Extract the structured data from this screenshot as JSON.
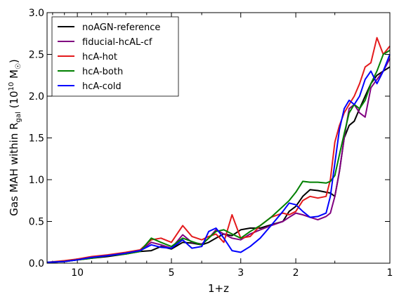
{
  "chart_data": {
    "type": "line",
    "xlabel": "1+z",
    "ylabel": {
      "main": "Gas MAH within R",
      "sub": "gal",
      "unit_open": " (10",
      "unit_exp": "10",
      "unit_mid": " M",
      "unit_sun": "☉",
      "unit_close": ")"
    },
    "xscale": "log",
    "xlim": [
      12.5,
      1.0
    ],
    "ylim": [
      0.0,
      3.0
    ],
    "xticks": [
      {
        "value": 10,
        "label": "10"
      },
      {
        "value": 5,
        "label": "5"
      },
      {
        "value": 3,
        "label": "3"
      },
      {
        "value": 2,
        "label": "2"
      },
      {
        "value": 1,
        "label": "1"
      }
    ],
    "yticks": [
      "0.0",
      "0.5",
      "1.0",
      "1.5",
      "2.0",
      "2.5",
      "3.0"
    ],
    "legend_position": "top-left",
    "series": [
      {
        "name": "noAGN-reference",
        "color": "#000000",
        "points": [
          [
            12.5,
            0.01
          ],
          [
            11,
            0.02
          ],
          [
            10,
            0.04
          ],
          [
            9,
            0.06
          ],
          [
            8,
            0.08
          ],
          [
            7,
            0.11
          ],
          [
            6.3,
            0.14
          ],
          [
            5.8,
            0.15
          ],
          [
            5.4,
            0.2
          ],
          [
            5,
            0.17
          ],
          [
            4.6,
            0.25
          ],
          [
            4.3,
            0.24
          ],
          [
            4,
            0.22
          ],
          [
            3.8,
            0.25
          ],
          [
            3.6,
            0.3
          ],
          [
            3.4,
            0.35
          ],
          [
            3.2,
            0.33
          ],
          [
            3.0,
            0.4
          ],
          [
            2.8,
            0.42
          ],
          [
            2.6,
            0.42
          ],
          [
            2.4,
            0.46
          ],
          [
            2.2,
            0.5
          ],
          [
            2.1,
            0.62
          ],
          [
            2.0,
            0.68
          ],
          [
            1.9,
            0.8
          ],
          [
            1.8,
            0.88
          ],
          [
            1.7,
            0.87
          ],
          [
            1.6,
            0.85
          ],
          [
            1.55,
            0.84
          ],
          [
            1.5,
            0.8
          ],
          [
            1.45,
            1.1
          ],
          [
            1.4,
            1.5
          ],
          [
            1.35,
            1.65
          ],
          [
            1.3,
            1.7
          ],
          [
            1.25,
            1.85
          ],
          [
            1.2,
            2.0
          ],
          [
            1.15,
            2.15
          ],
          [
            1.1,
            2.25
          ],
          [
            1.05,
            2.3
          ],
          [
            1.0,
            2.35
          ]
        ]
      },
      {
        "name": "fiducial-hcAL-cf",
        "color": "#800080",
        "points": [
          [
            12.5,
            0.01
          ],
          [
            11,
            0.02
          ],
          [
            10,
            0.05
          ],
          [
            9,
            0.07
          ],
          [
            8,
            0.09
          ],
          [
            7,
            0.12
          ],
          [
            6.3,
            0.15
          ],
          [
            5.8,
            0.25
          ],
          [
            5.4,
            0.22
          ],
          [
            5,
            0.18
          ],
          [
            4.6,
            0.34
          ],
          [
            4.3,
            0.25
          ],
          [
            4,
            0.23
          ],
          [
            3.8,
            0.3
          ],
          [
            3.6,
            0.4
          ],
          [
            3.4,
            0.35
          ],
          [
            3.2,
            0.3
          ],
          [
            3.0,
            0.28
          ],
          [
            2.8,
            0.35
          ],
          [
            2.6,
            0.4
          ],
          [
            2.4,
            0.45
          ],
          [
            2.2,
            0.5
          ],
          [
            2.1,
            0.55
          ],
          [
            2.0,
            0.6
          ],
          [
            1.9,
            0.58
          ],
          [
            1.8,
            0.55
          ],
          [
            1.7,
            0.52
          ],
          [
            1.6,
            0.56
          ],
          [
            1.55,
            0.6
          ],
          [
            1.5,
            0.8
          ],
          [
            1.45,
            1.1
          ],
          [
            1.4,
            1.5
          ],
          [
            1.35,
            1.85
          ],
          [
            1.3,
            1.9
          ],
          [
            1.25,
            1.8
          ],
          [
            1.2,
            1.75
          ],
          [
            1.15,
            2.1
          ],
          [
            1.1,
            2.2
          ],
          [
            1.05,
            2.3
          ],
          [
            1.0,
            2.45
          ]
        ]
      },
      {
        "name": "hcA-hot",
        "color": "#e41a1c",
        "points": [
          [
            12.5,
            0.01
          ],
          [
            11,
            0.03
          ],
          [
            10,
            0.05
          ],
          [
            9,
            0.08
          ],
          [
            8,
            0.1
          ],
          [
            7,
            0.13
          ],
          [
            6.3,
            0.16
          ],
          [
            5.8,
            0.28
          ],
          [
            5.4,
            0.3
          ],
          [
            5,
            0.25
          ],
          [
            4.6,
            0.45
          ],
          [
            4.3,
            0.32
          ],
          [
            4,
            0.28
          ],
          [
            3.8,
            0.32
          ],
          [
            3.6,
            0.35
          ],
          [
            3.4,
            0.25
          ],
          [
            3.2,
            0.58
          ],
          [
            3.0,
            0.3
          ],
          [
            2.8,
            0.32
          ],
          [
            2.6,
            0.45
          ],
          [
            2.4,
            0.55
          ],
          [
            2.2,
            0.6
          ],
          [
            2.1,
            0.58
          ],
          [
            2.0,
            0.62
          ],
          [
            1.9,
            0.75
          ],
          [
            1.8,
            0.8
          ],
          [
            1.7,
            0.78
          ],
          [
            1.6,
            0.8
          ],
          [
            1.55,
            1.0
          ],
          [
            1.5,
            1.45
          ],
          [
            1.45,
            1.65
          ],
          [
            1.4,
            1.8
          ],
          [
            1.35,
            1.9
          ],
          [
            1.3,
            2.0
          ],
          [
            1.25,
            2.15
          ],
          [
            1.2,
            2.35
          ],
          [
            1.15,
            2.4
          ],
          [
            1.1,
            2.7
          ],
          [
            1.05,
            2.5
          ],
          [
            1.0,
            2.6
          ]
        ]
      },
      {
        "name": "hcA-both",
        "color": "#008000",
        "points": [
          [
            12.5,
            0.01
          ],
          [
            11,
            0.02
          ],
          [
            10,
            0.04
          ],
          [
            9,
            0.06
          ],
          [
            8,
            0.09
          ],
          [
            7,
            0.11
          ],
          [
            6.3,
            0.14
          ],
          [
            5.8,
            0.3
          ],
          [
            5.4,
            0.25
          ],
          [
            5,
            0.2
          ],
          [
            4.6,
            0.3
          ],
          [
            4.3,
            0.26
          ],
          [
            4,
            0.22
          ],
          [
            3.8,
            0.3
          ],
          [
            3.6,
            0.38
          ],
          [
            3.4,
            0.4
          ],
          [
            3.2,
            0.35
          ],
          [
            3.0,
            0.3
          ],
          [
            2.8,
            0.38
          ],
          [
            2.6,
            0.45
          ],
          [
            2.4,
            0.55
          ],
          [
            2.2,
            0.68
          ],
          [
            2.1,
            0.75
          ],
          [
            2.0,
            0.85
          ],
          [
            1.9,
            0.98
          ],
          [
            1.8,
            0.97
          ],
          [
            1.7,
            0.97
          ],
          [
            1.6,
            0.96
          ],
          [
            1.55,
            0.98
          ],
          [
            1.5,
            1.05
          ],
          [
            1.45,
            1.3
          ],
          [
            1.4,
            1.55
          ],
          [
            1.35,
            1.8
          ],
          [
            1.3,
            1.9
          ],
          [
            1.25,
            1.85
          ],
          [
            1.2,
            1.95
          ],
          [
            1.15,
            2.15
          ],
          [
            1.1,
            2.3
          ],
          [
            1.05,
            2.5
          ],
          [
            1.0,
            2.55
          ]
        ]
      },
      {
        "name": "hcA-cold",
        "color": "#0000ff",
        "points": [
          [
            12.5,
            0.01
          ],
          [
            11,
            0.02
          ],
          [
            10,
            0.04
          ],
          [
            9,
            0.07
          ],
          [
            8,
            0.09
          ],
          [
            7,
            0.12
          ],
          [
            6.3,
            0.15
          ],
          [
            5.8,
            0.22
          ],
          [
            5.4,
            0.19
          ],
          [
            5,
            0.18
          ],
          [
            4.6,
            0.28
          ],
          [
            4.3,
            0.18
          ],
          [
            4,
            0.2
          ],
          [
            3.8,
            0.38
          ],
          [
            3.6,
            0.42
          ],
          [
            3.4,
            0.3
          ],
          [
            3.2,
            0.15
          ],
          [
            3.0,
            0.13
          ],
          [
            2.8,
            0.2
          ],
          [
            2.6,
            0.3
          ],
          [
            2.4,
            0.45
          ],
          [
            2.2,
            0.62
          ],
          [
            2.1,
            0.72
          ],
          [
            2.0,
            0.7
          ],
          [
            1.9,
            0.62
          ],
          [
            1.8,
            0.55
          ],
          [
            1.7,
            0.56
          ],
          [
            1.6,
            0.6
          ],
          [
            1.55,
            0.8
          ],
          [
            1.5,
            1.2
          ],
          [
            1.45,
            1.6
          ],
          [
            1.4,
            1.85
          ],
          [
            1.35,
            1.95
          ],
          [
            1.3,
            1.9
          ],
          [
            1.25,
            2.0
          ],
          [
            1.2,
            2.2
          ],
          [
            1.15,
            2.3
          ],
          [
            1.1,
            2.15
          ],
          [
            1.05,
            2.3
          ],
          [
            1.0,
            2.5
          ]
        ]
      }
    ]
  }
}
